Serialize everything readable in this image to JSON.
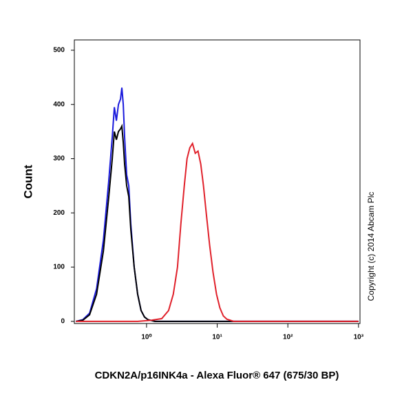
{
  "chart_data": {
    "type": "line",
    "log_x": true,
    "xlabel": "CDKN2A/p16INK4a - Alexa Fluor® 647 (675/30 BP)",
    "ylabel": "Count",
    "annotation": "Copyright (c) 2014 Abcam Plc",
    "xlim": [
      0.095,
      1050
    ],
    "ylim": [
      -4,
      519
    ],
    "xticks": [
      {
        "value": 1,
        "label": "10⁰"
      },
      {
        "value": 10,
        "label": "10¹"
      },
      {
        "value": 100,
        "label": "10²"
      },
      {
        "value": 1000,
        "label": "10³"
      }
    ],
    "yticks": [
      0,
      100,
      200,
      300,
      400,
      500
    ],
    "series": [
      {
        "color": "#1a1adc",
        "x": [
          0.1,
          0.125,
          0.156,
          0.196,
          0.245,
          0.292,
          0.327,
          0.35,
          0.374,
          0.4,
          0.428,
          0.447,
          0.468,
          0.489,
          0.523,
          0.56,
          0.598,
          0.668,
          0.748,
          0.836,
          0.935,
          1.05,
          1.31,
          1.83,
          1000
        ],
        "values": [
          0,
          3,
          15,
          60,
          150,
          260,
          340,
          395,
          370,
          400,
          410,
          431,
          400,
          340,
          270,
          250,
          180,
          100,
          50,
          20,
          8,
          3,
          0,
          0,
          0
        ]
      },
      {
        "color": "#000000",
        "x": [
          0.1,
          0.125,
          0.156,
          0.196,
          0.245,
          0.292,
          0.327,
          0.35,
          0.374,
          0.4,
          0.428,
          0.447,
          0.468,
          0.489,
          0.523,
          0.56,
          0.598,
          0.668,
          0.748,
          0.836,
          0.935,
          1.05,
          1.31,
          1.83,
          1000
        ],
        "values": [
          0,
          2,
          12,
          50,
          130,
          230,
          300,
          350,
          335,
          350,
          355,
          360,
          330,
          290,
          250,
          230,
          170,
          100,
          50,
          20,
          8,
          3,
          0,
          0,
          0
        ]
      },
      {
        "color": "#e0202a",
        "x": [
          0.1,
          0.748,
          1.17,
          1.64,
          2.05,
          2.39,
          2.74,
          3.06,
          3.42,
          3.74,
          4.09,
          4.47,
          4.89,
          5.35,
          5.85,
          6.39,
          6.99,
          7.82,
          8.74,
          9.78,
          10.9,
          12.2,
          13.7,
          17.1,
          1000
        ],
        "values": [
          0,
          0,
          2,
          5,
          20,
          50,
          100,
          180,
          250,
          300,
          320,
          328,
          310,
          314,
          290,
          250,
          200,
          140,
          90,
          50,
          25,
          10,
          4,
          0,
          0
        ]
      }
    ]
  }
}
